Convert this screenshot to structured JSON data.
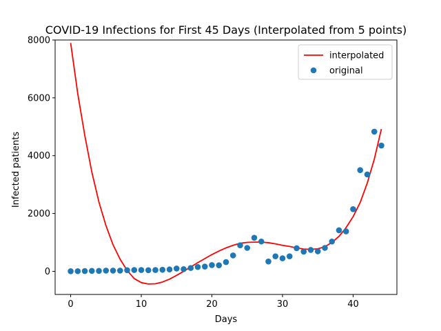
{
  "chart_data": {
    "type": "scatter",
    "title": "COVID-19 Infections for First 45 Days (Interpolated from 5 points)",
    "xlabel": "Days",
    "ylabel": "Infected patients",
    "xlim": [
      -2.2,
      46.2
    ],
    "ylim": [
      -800,
      8000
    ],
    "xticks": [
      0,
      10,
      20,
      30,
      40
    ],
    "yticks": [
      0,
      2000,
      4000,
      6000,
      8000
    ],
    "grid": false,
    "legend_position": "top-right",
    "colors": {
      "interpolated": "#ff0000",
      "original": "#1f77b4"
    },
    "series": [
      {
        "name": "interpolated",
        "kind": "line",
        "x": [
          0,
          1,
          2,
          3,
          4,
          5,
          6,
          7,
          8,
          9,
          10,
          11,
          12,
          13,
          14,
          15,
          16,
          17,
          18,
          19,
          20,
          21,
          22,
          23,
          24,
          25,
          26,
          27,
          28,
          29,
          30,
          31,
          32,
          33,
          34,
          35,
          36,
          37,
          38,
          39,
          40,
          41,
          42,
          43,
          44
        ],
        "y": [
          7900,
          6150,
          4700,
          3430,
          2400,
          1580,
          920,
          420,
          30,
          -250,
          -390,
          -440,
          -430,
          -370,
          -270,
          -140,
          0,
          150,
          300,
          440,
          580,
          700,
          810,
          900,
          970,
          1000,
          1010,
          1010,
          990,
          950,
          900,
          860,
          810,
          770,
          760,
          780,
          850,
          1000,
          1210,
          1510,
          1890,
          2380,
          3050,
          3880,
          4920
        ]
      },
      {
        "name": "original",
        "kind": "scatter",
        "x": [
          0,
          1,
          2,
          3,
          4,
          5,
          6,
          7,
          8,
          9,
          10,
          11,
          12,
          13,
          14,
          15,
          16,
          17,
          18,
          19,
          20,
          21,
          22,
          23,
          24,
          25,
          26,
          27,
          28,
          29,
          30,
          31,
          32,
          33,
          34,
          35,
          36,
          37,
          38,
          39,
          40,
          41,
          42,
          43,
          44
        ],
        "y": [
          3,
          5,
          10,
          15,
          15,
          25,
          25,
          25,
          40,
          45,
          45,
          40,
          45,
          55,
          65,
          95,
          75,
          115,
          150,
          165,
          215,
          210,
          320,
          550,
          900,
          810,
          1160,
          1030,
          340,
          520,
          450,
          520,
          800,
          680,
          740,
          690,
          810,
          1030,
          1420,
          1380,
          2150,
          3500,
          3350,
          4830,
          4350
        ]
      }
    ]
  }
}
